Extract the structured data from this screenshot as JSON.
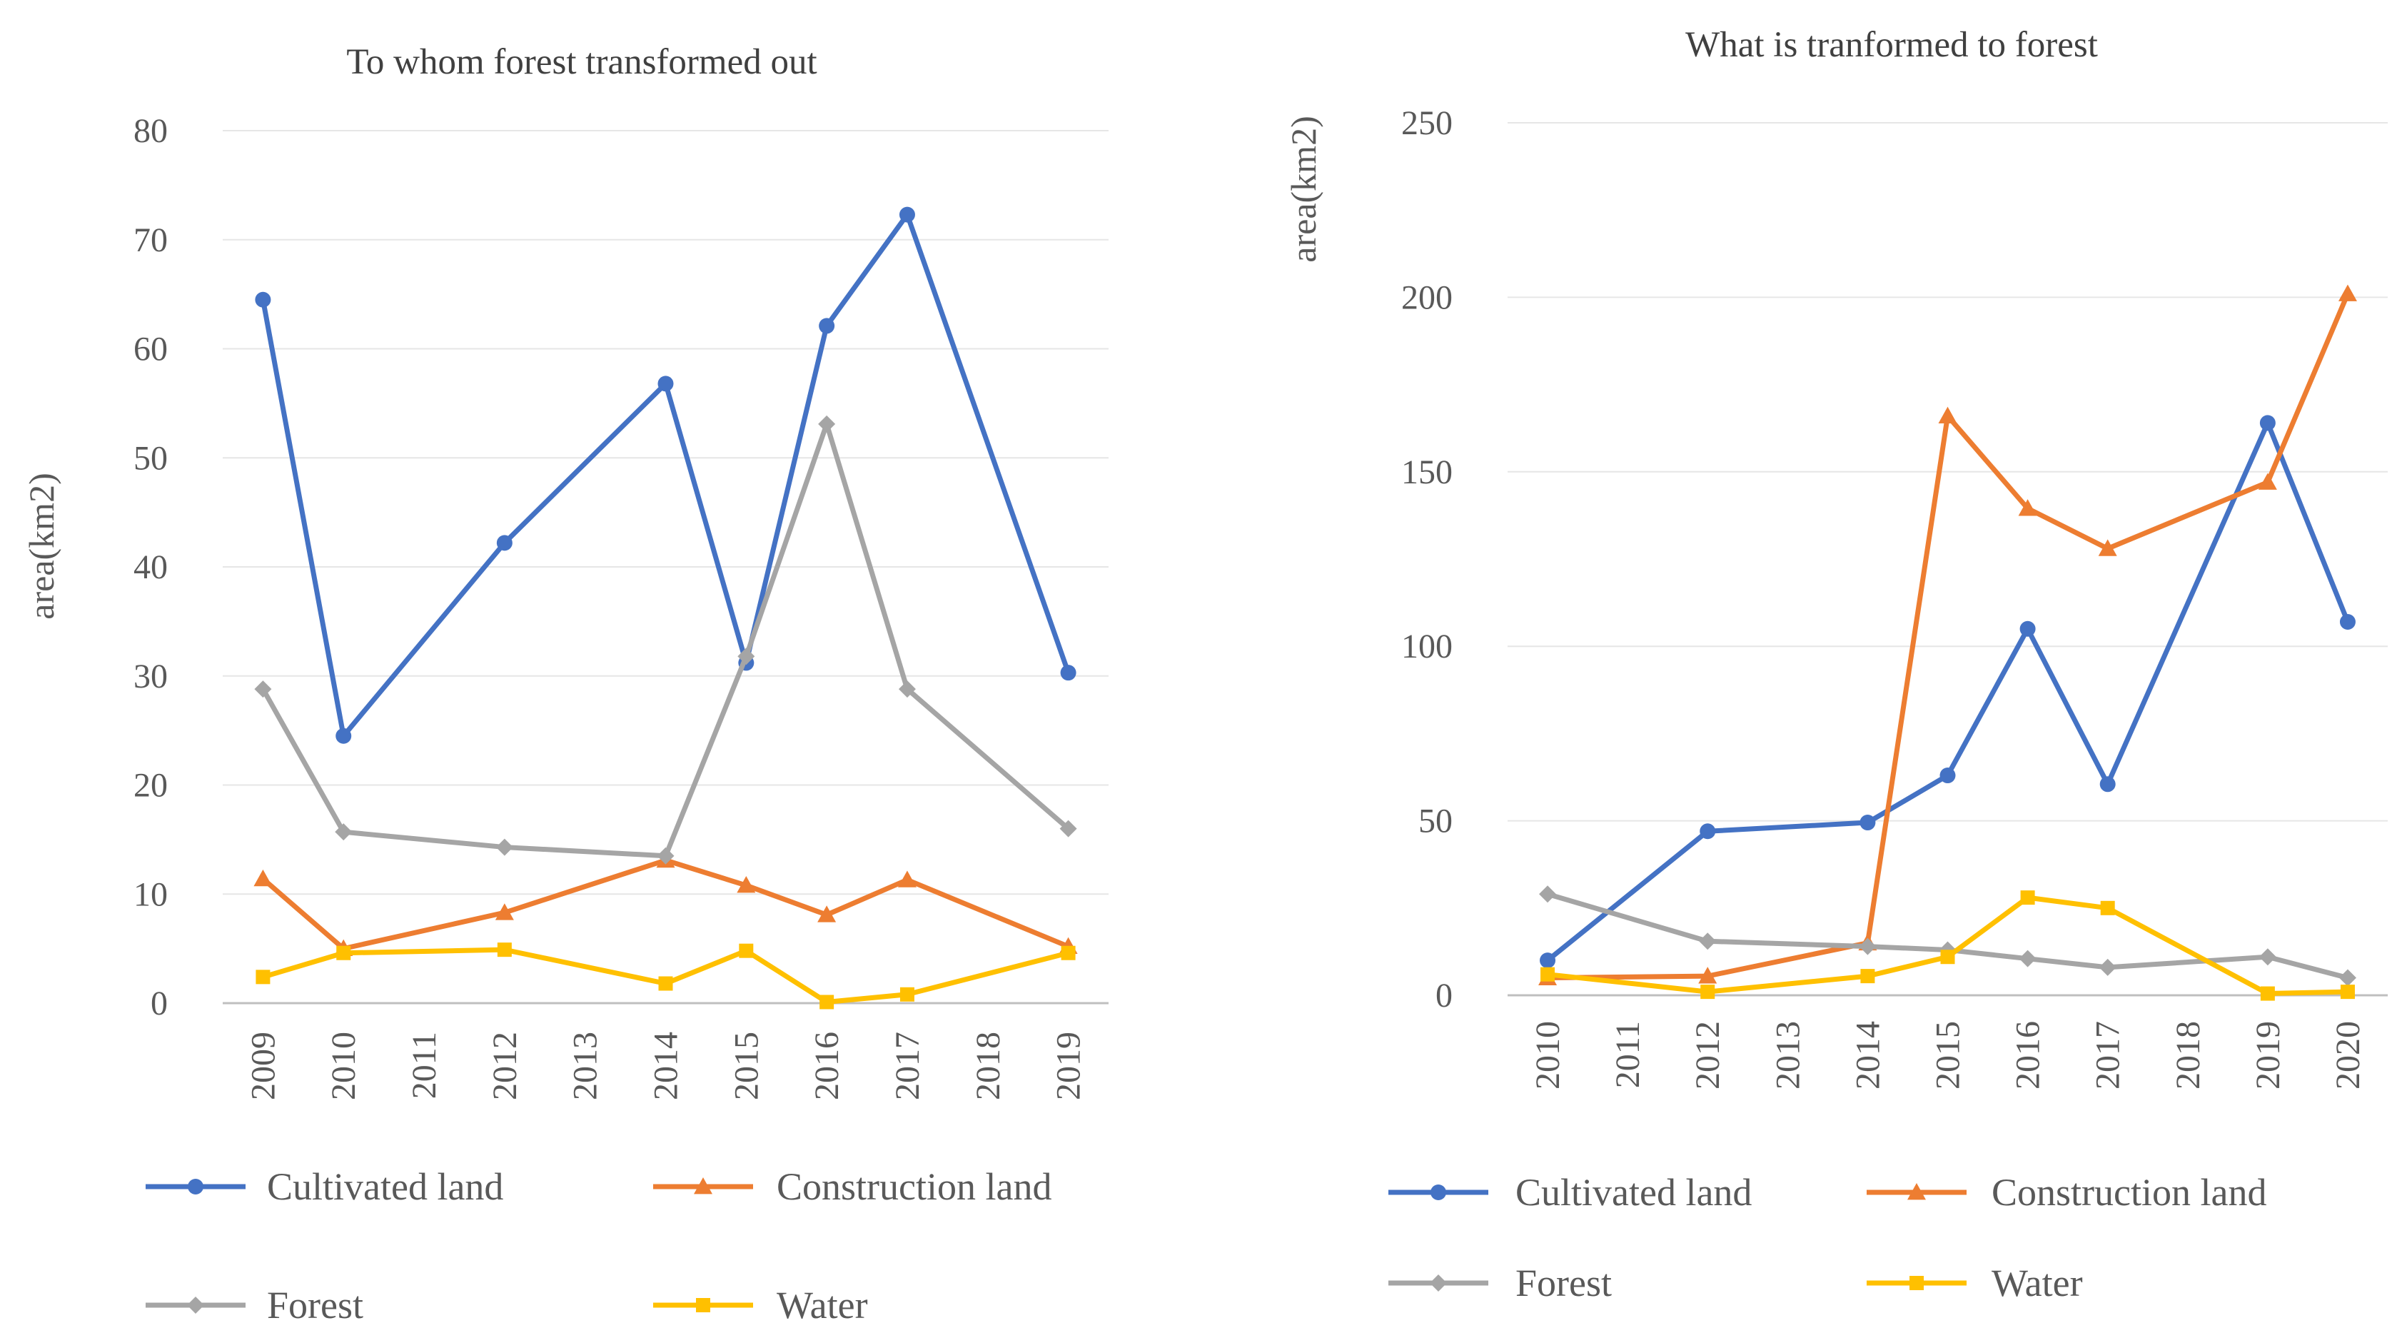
{
  "chart_data": [
    {
      "type": "line",
      "title": "To whom forest transformed out",
      "xlabel": "",
      "ylabel": "area(km2)",
      "ylim": [
        0,
        80
      ],
      "yticks": [
        "0",
        "10",
        "20",
        "30",
        "40",
        "50",
        "60",
        "70",
        "80"
      ],
      "categories": [
        "2009",
        "2010",
        "2011",
        "2012",
        "2013",
        "2014",
        "2015",
        "2016",
        "2017",
        "2018",
        "2019"
      ],
      "grid": true,
      "legend": "bottom",
      "series": [
        {
          "name": "Cultivated land",
          "color": "#4472c4",
          "marker": "circle",
          "values": [
            64.5,
            24.5,
            null,
            42.2,
            null,
            56.8,
            31.2,
            62.1,
            72.3,
            null,
            30.3
          ]
        },
        {
          "name": "Construction land",
          "color": "#ed7d31",
          "marker": "triangle",
          "values": [
            11.4,
            5.0,
            null,
            8.3,
            null,
            13.1,
            10.8,
            8.1,
            11.3,
            null,
            5.2
          ]
        },
        {
          "name": "Forest",
          "color": "#a5a5a5",
          "marker": "diamond",
          "values": [
            28.8,
            15.7,
            null,
            14.3,
            null,
            13.5,
            31.8,
            53.1,
            28.8,
            null,
            16.0
          ]
        },
        {
          "name": "Water",
          "color": "#ffc000",
          "marker": "square",
          "values": [
            2.4,
            4.6,
            null,
            4.9,
            null,
            1.8,
            4.8,
            0.1,
            0.8,
            null,
            4.6
          ]
        }
      ]
    },
    {
      "type": "line",
      "title": "What is tranformed to forest",
      "xlabel": "",
      "ylabel": "area(km2)",
      "ylim": [
        0,
        250
      ],
      "yticks": [
        "0",
        "50",
        "100",
        "150",
        "200",
        "250"
      ],
      "categories": [
        "2010",
        "2011",
        "2012",
        "2013",
        "2014",
        "2015",
        "2016",
        "2017",
        "2018",
        "2019",
        "2020"
      ],
      "grid": true,
      "legend": "bottom",
      "series": [
        {
          "name": "Cultivated land",
          "color": "#4472c4",
          "marker": "circle",
          "values": [
            10,
            null,
            47,
            null,
            49.5,
            63,
            105,
            60.5,
            null,
            164,
            107
          ]
        },
        {
          "name": "Construction land",
          "color": "#ed7d31",
          "marker": "triangle",
          "values": [
            5,
            null,
            5.5,
            null,
            15,
            166,
            139.5,
            128,
            null,
            147,
            201
          ]
        },
        {
          "name": "Forest",
          "color": "#a5a5a5",
          "marker": "diamond",
          "values": [
            29,
            null,
            15.5,
            null,
            14,
            13,
            10.5,
            8,
            null,
            11,
            5
          ]
        },
        {
          "name": "Water",
          "color": "#ffc000",
          "marker": "square",
          "values": [
            6,
            null,
            1,
            null,
            5.5,
            11,
            28,
            25,
            null,
            0.5,
            1
          ]
        }
      ]
    }
  ]
}
